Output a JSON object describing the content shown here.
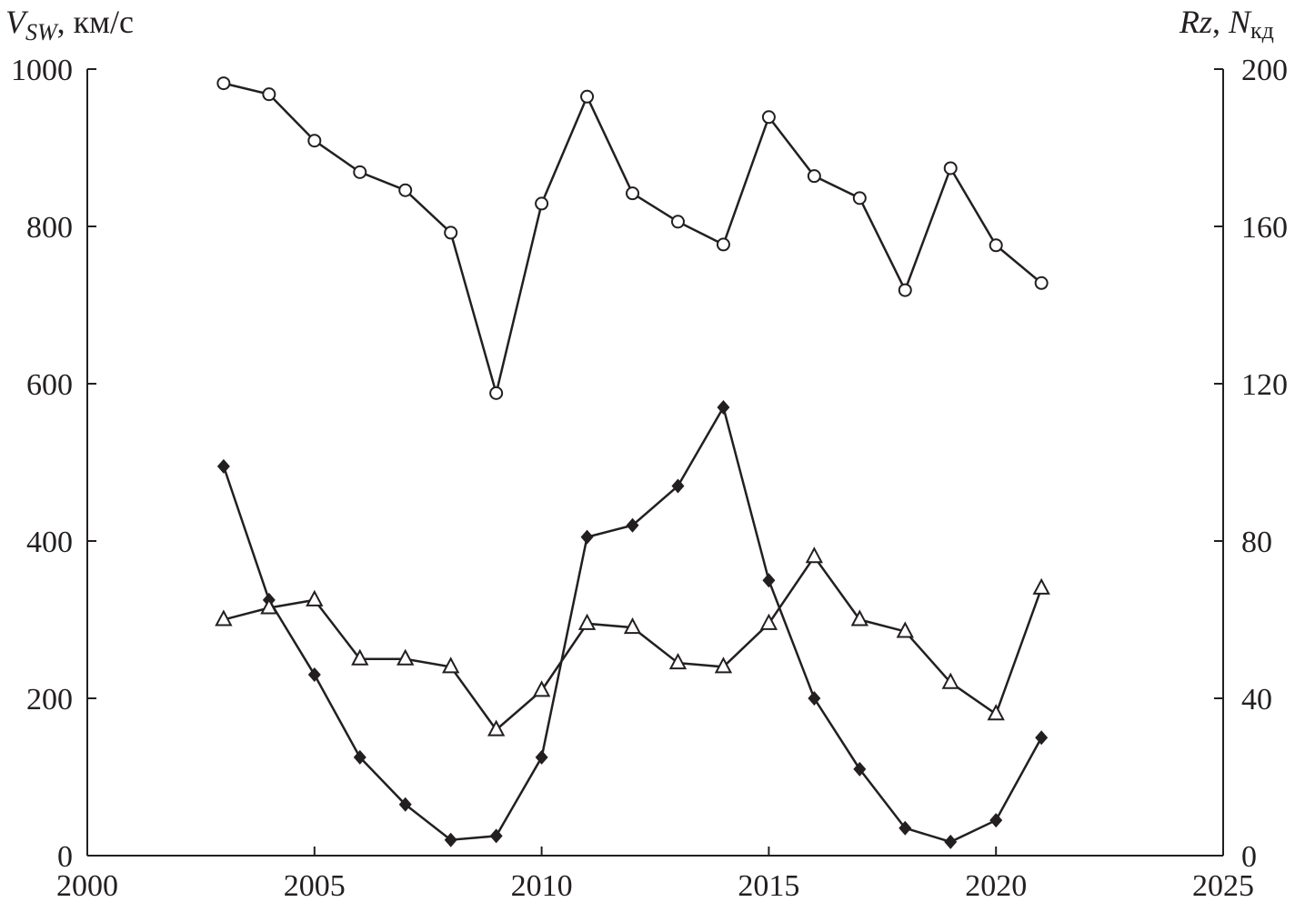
{
  "chart_data": {
    "type": "line",
    "x": [
      2003,
      2004,
      2005,
      2006,
      2007,
      2008,
      2009,
      2010,
      2011,
      2012,
      2013,
      2014,
      2015,
      2016,
      2017,
      2018,
      2019,
      2020,
      2021
    ],
    "xlim": [
      2000,
      2025
    ],
    "xticks": [
      "2000",
      "2005",
      "2010",
      "2015",
      "2020",
      "2025"
    ],
    "ylim_left": [
      0,
      1000
    ],
    "yticks_left": [
      "0",
      "200",
      "400",
      "600",
      "800",
      "1000"
    ],
    "ylim_right": [
      0,
      200
    ],
    "yticks_right": [
      "0",
      "40",
      "80",
      "120",
      "160",
      "200"
    ],
    "ylabel_left": {
      "main": "V",
      "sub": "SW",
      "unit": ", км/с"
    },
    "ylabel_right": {
      "main": "Rz",
      "sep": ", ",
      "n": "N",
      "sub": "кд"
    },
    "grid": false,
    "series": [
      {
        "marker": "open-circle",
        "axis": "left",
        "values": [
          982,
          968,
          909,
          869,
          846,
          792,
          588,
          829,
          965,
          842,
          806,
          777,
          939,
          864,
          836,
          719,
          874,
          776,
          728
        ]
      },
      {
        "marker": "filled-diamond",
        "axis": "right",
        "values": [
          99,
          65,
          46,
          25,
          13,
          4,
          5,
          25,
          81,
          84,
          94,
          114,
          70,
          40,
          22,
          7,
          3.5,
          9,
          30
        ]
      },
      {
        "marker": "open-triangle",
        "axis": "right",
        "values": [
          60,
          63,
          65,
          50,
          50,
          48,
          32,
          42,
          59,
          58,
          49,
          48,
          59,
          76,
          60,
          57,
          44,
          36,
          68
        ]
      }
    ],
    "colors": {
      "line": "#231f20",
      "background": "#ffffff"
    }
  }
}
